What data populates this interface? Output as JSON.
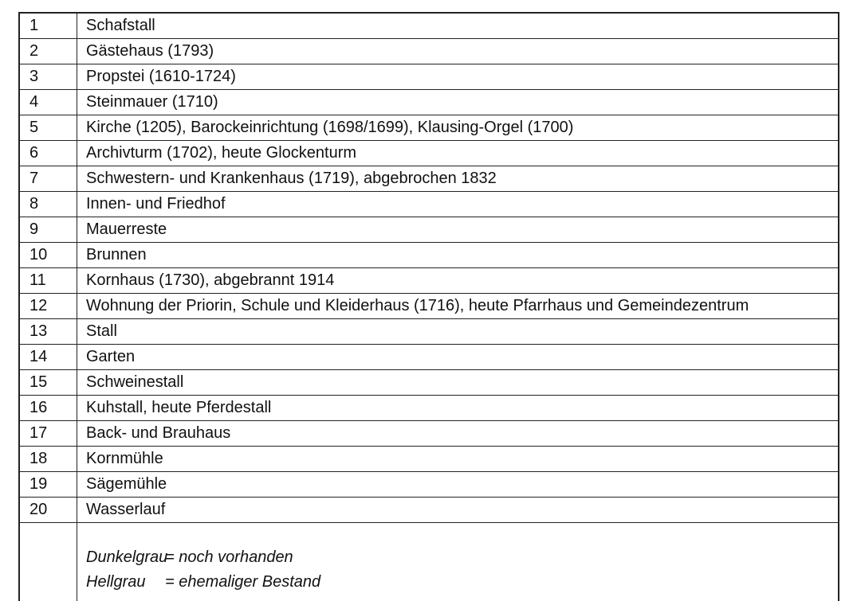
{
  "rows": [
    {
      "num": "1",
      "label": "Schafstall"
    },
    {
      "num": "2",
      "label": "Gästehaus (1793)"
    },
    {
      "num": "3",
      "label": "Propstei (1610-1724)"
    },
    {
      "num": "4",
      "label": "Steinmauer (1710)"
    },
    {
      "num": "5",
      "label": "Kirche (1205), Barockeinrichtung (1698/1699), Klausing-Orgel (1700)"
    },
    {
      "num": "6",
      "label": "Archivturm (1702), heute Glockenturm"
    },
    {
      "num": "7",
      "label": "Schwestern- und Krankenhaus (1719), abgebrochen 1832"
    },
    {
      "num": "8",
      "label": "Innen- und Friedhof"
    },
    {
      "num": "9",
      "label": "Mauerreste"
    },
    {
      "num": "10",
      "label": "Brunnen"
    },
    {
      "num": "11",
      "label": "Kornhaus (1730), abgebrannt 1914"
    },
    {
      "num": "12",
      "label": "Wohnung der Priorin, Schule und Kleiderhaus (1716), heute Pfarrhaus und Gemeindezentrum"
    },
    {
      "num": "13",
      "label": "Stall"
    },
    {
      "num": "14",
      "label": "Garten"
    },
    {
      "num": "15",
      "label": "Schweinestall"
    },
    {
      "num": "16",
      "label": "Kuhstall, heute Pferdestall"
    },
    {
      "num": "17",
      "label": "Back- und Brauhaus"
    },
    {
      "num": "18",
      "label": "Kornmühle"
    },
    {
      "num": "19",
      "label": "Sägemühle"
    },
    {
      "num": "20",
      "label": "Wasserlauf"
    }
  ],
  "legend": [
    {
      "term": "Dunkelgrau",
      "def": "= noch vorhanden"
    },
    {
      "term": "Hellgrau",
      "def": "= ehemaliger Bestand"
    }
  ],
  "colors": {
    "border": "#222222",
    "text": "#111111",
    "background": "#ffffff"
  }
}
